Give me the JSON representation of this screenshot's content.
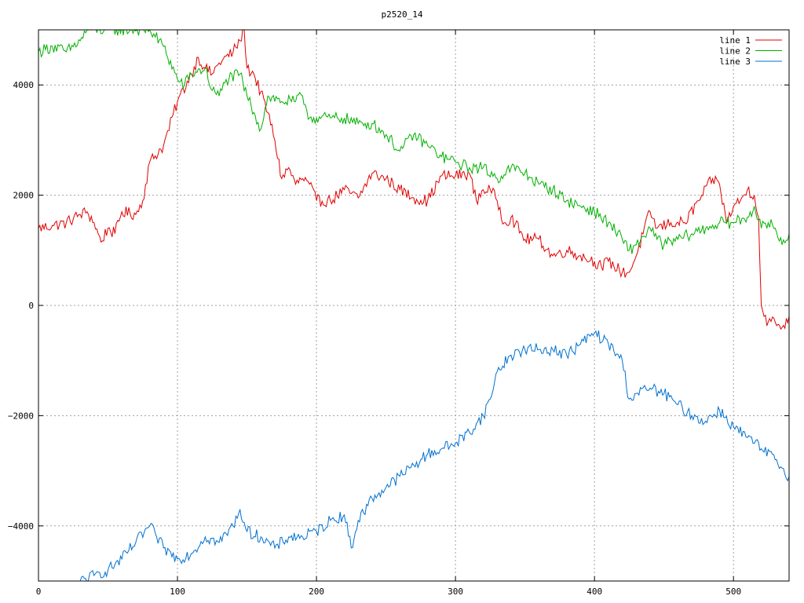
{
  "chart_data": {
    "type": "line",
    "title": "p2520_14",
    "xlabel": "",
    "ylabel": "",
    "xlim": [
      0,
      540
    ],
    "ylim": [
      -5000,
      5000
    ],
    "xticks": [
      0,
      100,
      200,
      300,
      400,
      500
    ],
    "yticks": [
      -4000,
      -2000,
      0,
      2000,
      4000
    ],
    "grid": true,
    "legend_position": "top-right",
    "series": [
      {
        "name": "line 1",
        "color": "#e00000",
        "points": [
          [
            0,
            1400
          ],
          [
            10,
            1450
          ],
          [
            20,
            1500
          ],
          [
            30,
            1650
          ],
          [
            35,
            1700
          ],
          [
            40,
            1500
          ],
          [
            45,
            1150
          ],
          [
            50,
            1400
          ],
          [
            55,
            1300
          ],
          [
            60,
            1700
          ],
          [
            70,
            1650
          ],
          [
            75,
            1900
          ],
          [
            80,
            2600
          ],
          [
            90,
            2900
          ],
          [
            100,
            3700
          ],
          [
            110,
            4200
          ],
          [
            115,
            4500
          ],
          [
            120,
            4300
          ],
          [
            125,
            4200
          ],
          [
            130,
            4400
          ],
          [
            140,
            4600
          ],
          [
            145,
            4800
          ],
          [
            148,
            5000
          ],
          [
            150,
            4300
          ],
          [
            155,
            4200
          ],
          [
            165,
            3500
          ],
          [
            170,
            3000
          ],
          [
            175,
            2300
          ],
          [
            180,
            2500
          ],
          [
            185,
            2200
          ],
          [
            190,
            2300
          ],
          [
            195,
            2200
          ],
          [
            200,
            1900
          ],
          [
            210,
            1900
          ],
          [
            220,
            2100
          ],
          [
            230,
            1950
          ],
          [
            240,
            2400
          ],
          [
            250,
            2300
          ],
          [
            260,
            2100
          ],
          [
            270,
            1950
          ],
          [
            280,
            1900
          ],
          [
            290,
            2350
          ],
          [
            300,
            2350
          ],
          [
            310,
            2400
          ],
          [
            315,
            1900
          ],
          [
            320,
            2100
          ],
          [
            325,
            2100
          ],
          [
            330,
            1900
          ],
          [
            335,
            1500
          ],
          [
            340,
            1600
          ],
          [
            350,
            1200
          ],
          [
            360,
            1200
          ],
          [
            370,
            900
          ],
          [
            380,
            1000
          ],
          [
            390,
            900
          ],
          [
            400,
            800
          ],
          [
            405,
            700
          ],
          [
            410,
            800
          ],
          [
            420,
            600
          ],
          [
            425,
            600
          ],
          [
            430,
            900
          ],
          [
            440,
            1700
          ],
          [
            445,
            1400
          ],
          [
            455,
            1500
          ],
          [
            465,
            1500
          ],
          [
            475,
            1900
          ],
          [
            485,
            2300
          ],
          [
            490,
            2200
          ],
          [
            495,
            1500
          ],
          [
            500,
            1800
          ],
          [
            505,
            1900
          ],
          [
            510,
            2100
          ],
          [
            515,
            2000
          ],
          [
            518,
            1600
          ],
          [
            520,
            0
          ],
          [
            522,
            -200
          ],
          [
            525,
            -300
          ],
          [
            530,
            -300
          ],
          [
            535,
            -400
          ],
          [
            540,
            -200
          ]
        ]
      },
      {
        "name": "line 2",
        "color": "#00b000",
        "points": [
          [
            0,
            4600
          ],
          [
            10,
            4700
          ],
          [
            20,
            4600
          ],
          [
            30,
            4800
          ],
          [
            35,
            5000
          ],
          [
            80,
            5000
          ],
          [
            90,
            4700
          ],
          [
            100,
            4100
          ],
          [
            105,
            4000
          ],
          [
            110,
            4200
          ],
          [
            120,
            4300
          ],
          [
            125,
            3900
          ],
          [
            130,
            3800
          ],
          [
            135,
            4100
          ],
          [
            145,
            4200
          ],
          [
            150,
            3800
          ],
          [
            155,
            3500
          ],
          [
            160,
            3200
          ],
          [
            165,
            3800
          ],
          [
            175,
            3700
          ],
          [
            185,
            3700
          ],
          [
            190,
            3800
          ],
          [
            195,
            3400
          ],
          [
            200,
            3400
          ],
          [
            210,
            3400
          ],
          [
            220,
            3400
          ],
          [
            230,
            3300
          ],
          [
            240,
            3300
          ],
          [
            250,
            3100
          ],
          [
            260,
            2800
          ],
          [
            270,
            3100
          ],
          [
            280,
            2900
          ],
          [
            290,
            2700
          ],
          [
            300,
            2600
          ],
          [
            310,
            2500
          ],
          [
            320,
            2500
          ],
          [
            330,
            2300
          ],
          [
            340,
            2500
          ],
          [
            350,
            2400
          ],
          [
            360,
            2200
          ],
          [
            370,
            2100
          ],
          [
            380,
            1900
          ],
          [
            390,
            1800
          ],
          [
            400,
            1700
          ],
          [
            410,
            1500
          ],
          [
            420,
            1200
          ],
          [
            425,
            1000
          ],
          [
            430,
            1100
          ],
          [
            440,
            1400
          ],
          [
            445,
            1200
          ],
          [
            450,
            1100
          ],
          [
            460,
            1200
          ],
          [
            470,
            1300
          ],
          [
            480,
            1400
          ],
          [
            490,
            1500
          ],
          [
            500,
            1500
          ],
          [
            510,
            1600
          ],
          [
            515,
            1800
          ],
          [
            520,
            1400
          ],
          [
            525,
            1500
          ],
          [
            530,
            1400
          ],
          [
            535,
            1100
          ],
          [
            540,
            1300
          ]
        ]
      },
      {
        "name": "line 3",
        "color": "#0070d0",
        "points": [
          [
            30,
            -5000
          ],
          [
            40,
            -4900
          ],
          [
            50,
            -4800
          ],
          [
            60,
            -4600
          ],
          [
            70,
            -4300
          ],
          [
            80,
            -4000
          ],
          [
            85,
            -4200
          ],
          [
            90,
            -4400
          ],
          [
            100,
            -4600
          ],
          [
            110,
            -4500
          ],
          [
            120,
            -4200
          ],
          [
            130,
            -4300
          ],
          [
            140,
            -4000
          ],
          [
            145,
            -3700
          ],
          [
            150,
            -4100
          ],
          [
            160,
            -4200
          ],
          [
            170,
            -4400
          ],
          [
            180,
            -4200
          ],
          [
            190,
            -4200
          ],
          [
            200,
            -4100
          ],
          [
            210,
            -3900
          ],
          [
            220,
            -3800
          ],
          [
            225,
            -4400
          ],
          [
            230,
            -3900
          ],
          [
            240,
            -3500
          ],
          [
            250,
            -3300
          ],
          [
            260,
            -3100
          ],
          [
            270,
            -2900
          ],
          [
            280,
            -2700
          ],
          [
            290,
            -2600
          ],
          [
            300,
            -2500
          ],
          [
            310,
            -2300
          ],
          [
            320,
            -2000
          ],
          [
            325,
            -1700
          ],
          [
            330,
            -1200
          ],
          [
            340,
            -900
          ],
          [
            350,
            -800
          ],
          [
            360,
            -800
          ],
          [
            370,
            -800
          ],
          [
            380,
            -900
          ],
          [
            390,
            -700
          ],
          [
            400,
            -500
          ],
          [
            410,
            -700
          ],
          [
            420,
            -1000
          ],
          [
            425,
            -1700
          ],
          [
            430,
            -1600
          ],
          [
            440,
            -1500
          ],
          [
            450,
            -1600
          ],
          [
            460,
            -1800
          ],
          [
            470,
            -2000
          ],
          [
            480,
            -2100
          ],
          [
            490,
            -1900
          ],
          [
            500,
            -2200
          ],
          [
            510,
            -2400
          ],
          [
            520,
            -2600
          ],
          [
            530,
            -2800
          ],
          [
            540,
            -3100
          ]
        ]
      }
    ]
  }
}
